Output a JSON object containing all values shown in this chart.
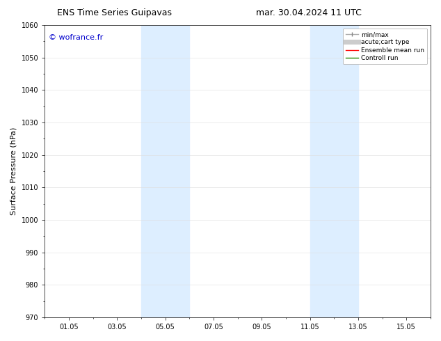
{
  "title_left": "ENS Time Series Guipavas",
  "title_right": "mar. 30.04.2024 11 UTC",
  "ylabel": "Surface Pressure (hPa)",
  "ylim": [
    970,
    1060
  ],
  "yticks": [
    970,
    980,
    990,
    1000,
    1010,
    1020,
    1030,
    1040,
    1050,
    1060
  ],
  "xtick_labels": [
    "01.05",
    "03.05",
    "05.05",
    "07.05",
    "09.05",
    "11.05",
    "13.05",
    "15.05"
  ],
  "xtick_positions": [
    1,
    3,
    5,
    7,
    9,
    11,
    13,
    15
  ],
  "xlim": [
    0,
    16
  ],
  "shaded_bands": [
    {
      "x_start": 4.0,
      "x_end": 6.0
    },
    {
      "x_start": 11.0,
      "x_end": 13.0
    }
  ],
  "shaded_color": "#ddeeff",
  "watermark_text": "© wofrance.fr",
  "watermark_color": "#0000cc",
  "legend_entries": [
    {
      "label": "min/max",
      "color": "#aaaaaa",
      "lw": 1.0
    },
    {
      "label": "acute;cart type",
      "color": "#cccccc",
      "lw": 5
    },
    {
      "label": "Ensemble mean run",
      "color": "#ff0000",
      "lw": 1.0
    },
    {
      "label": "Controll run",
      "color": "#228800",
      "lw": 1.0
    }
  ],
  "bg_color": "#ffffff",
  "axes_bg_color": "#ffffff",
  "grid_color": "#dddddd",
  "title_fontsize": 9,
  "tick_fontsize": 7,
  "ylabel_fontsize": 8,
  "legend_fontsize": 6.5,
  "watermark_fontsize": 8
}
